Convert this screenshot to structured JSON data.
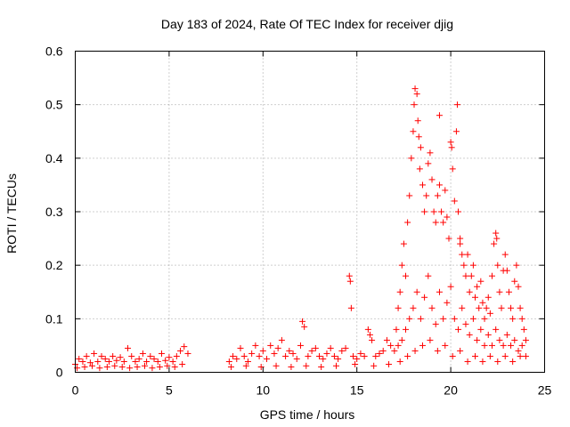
{
  "chart_data": {
    "type": "scatter",
    "title": "Day 183 of 2024, Rate Of TEC Index for receiver djig",
    "xlabel": "GPS time / hours",
    "ylabel": "ROTI / TECUs",
    "xlim": [
      0,
      25
    ],
    "ylim": [
      0,
      0.6
    ],
    "xticks": [
      0,
      5,
      10,
      15,
      20,
      25
    ],
    "yticks": [
      0,
      0.1,
      0.2,
      0.3,
      0.4,
      0.5,
      0.6
    ],
    "xtick_labels": [
      "0",
      "5",
      "10",
      "15",
      "20",
      "25"
    ],
    "ytick_labels": [
      "0",
      "0.1",
      "0.2",
      "0.3",
      "0.4",
      "0.5",
      "0.6"
    ],
    "grid": true,
    "marker": "+",
    "color": "#ff0000",
    "series": [
      {
        "points": [
          [
            0.0,
            0.015
          ],
          [
            0.2,
            0.025
          ],
          [
            0.4,
            0.02
          ],
          [
            0.6,
            0.03
          ],
          [
            0.8,
            0.018
          ],
          [
            1.0,
            0.035
          ],
          [
            1.2,
            0.02
          ],
          [
            1.4,
            0.03
          ],
          [
            1.6,
            0.025
          ],
          [
            1.8,
            0.02
          ],
          [
            2.0,
            0.03
          ],
          [
            2.2,
            0.022
          ],
          [
            2.4,
            0.028
          ],
          [
            2.6,
            0.02
          ],
          [
            2.8,
            0.045
          ],
          [
            3.0,
            0.03
          ],
          [
            3.2,
            0.02
          ],
          [
            3.4,
            0.025
          ],
          [
            3.6,
            0.035
          ],
          [
            3.8,
            0.02
          ],
          [
            4.0,
            0.03
          ],
          [
            4.2,
            0.025
          ],
          [
            4.4,
            0.02
          ],
          [
            4.6,
            0.035
          ],
          [
            4.8,
            0.022
          ],
          [
            5.0,
            0.028
          ],
          [
            5.2,
            0.02
          ],
          [
            5.4,
            0.03
          ],
          [
            5.6,
            0.04
          ],
          [
            5.8,
            0.048
          ],
          [
            6.0,
            0.035
          ],
          [
            0.1,
            0.008
          ],
          [
            0.5,
            0.01
          ],
          [
            0.9,
            0.012
          ],
          [
            1.3,
            0.008
          ],
          [
            1.7,
            0.01
          ],
          [
            2.1,
            0.012
          ],
          [
            2.5,
            0.01
          ],
          [
            2.9,
            0.008
          ],
          [
            3.3,
            0.01
          ],
          [
            3.7,
            0.012
          ],
          [
            4.1,
            0.008
          ],
          [
            4.5,
            0.01
          ],
          [
            4.9,
            0.012
          ],
          [
            5.3,
            0.01
          ],
          [
            5.7,
            0.015
          ],
          [
            8.2,
            0.02
          ],
          [
            8.4,
            0.03
          ],
          [
            8.6,
            0.025
          ],
          [
            8.8,
            0.045
          ],
          [
            9.0,
            0.03
          ],
          [
            9.2,
            0.02
          ],
          [
            9.4,
            0.035
          ],
          [
            9.6,
            0.05
          ],
          [
            9.8,
            0.03
          ],
          [
            10.0,
            0.04
          ],
          [
            10.2,
            0.025
          ],
          [
            10.4,
            0.05
          ],
          [
            10.6,
            0.035
          ],
          [
            10.8,
            0.045
          ],
          [
            11.0,
            0.06
          ],
          [
            11.2,
            0.03
          ],
          [
            11.4,
            0.04
          ],
          [
            11.6,
            0.035
          ],
          [
            11.8,
            0.025
          ],
          [
            12.0,
            0.05
          ],
          [
            12.1,
            0.095
          ],
          [
            12.2,
            0.085
          ],
          [
            12.4,
            0.03
          ],
          [
            12.6,
            0.04
          ],
          [
            12.8,
            0.045
          ],
          [
            13.0,
            0.03
          ],
          [
            13.2,
            0.025
          ],
          [
            13.4,
            0.035
          ],
          [
            13.6,
            0.045
          ],
          [
            13.8,
            0.03
          ],
          [
            14.0,
            0.025
          ],
          [
            14.2,
            0.04
          ],
          [
            14.4,
            0.045
          ],
          [
            14.6,
            0.18
          ],
          [
            14.65,
            0.17
          ],
          [
            14.7,
            0.12
          ],
          [
            14.8,
            0.03
          ],
          [
            15.0,
            0.025
          ],
          [
            15.2,
            0.035
          ],
          [
            15.4,
            0.03
          ],
          [
            15.6,
            0.08
          ],
          [
            15.7,
            0.07
          ],
          [
            15.8,
            0.06
          ],
          [
            16.0,
            0.03
          ],
          [
            16.2,
            0.035
          ],
          [
            16.4,
            0.04
          ],
          [
            16.6,
            0.06
          ],
          [
            16.8,
            0.05
          ],
          [
            17.0,
            0.04
          ],
          [
            8.3,
            0.01
          ],
          [
            9.1,
            0.012
          ],
          [
            9.9,
            0.01
          ],
          [
            10.7,
            0.012
          ],
          [
            11.5,
            0.01
          ],
          [
            12.3,
            0.012
          ],
          [
            13.1,
            0.01
          ],
          [
            13.9,
            0.012
          ],
          [
            14.9,
            0.015
          ],
          [
            15.9,
            0.012
          ],
          [
            16.7,
            0.015
          ],
          [
            17.1,
            0.08
          ],
          [
            17.2,
            0.12
          ],
          [
            17.3,
            0.15
          ],
          [
            17.4,
            0.2
          ],
          [
            17.5,
            0.24
          ],
          [
            17.6,
            0.18
          ],
          [
            17.7,
            0.28
          ],
          [
            17.8,
            0.33
          ],
          [
            17.9,
            0.4
          ],
          [
            18.0,
            0.45
          ],
          [
            18.05,
            0.5
          ],
          [
            18.1,
            0.53
          ],
          [
            18.2,
            0.52
          ],
          [
            18.25,
            0.47
          ],
          [
            18.3,
            0.44
          ],
          [
            18.35,
            0.38
          ],
          [
            18.4,
            0.42
          ],
          [
            18.5,
            0.35
          ],
          [
            18.6,
            0.3
          ],
          [
            18.7,
            0.33
          ],
          [
            18.8,
            0.39
          ],
          [
            18.9,
            0.41
          ],
          [
            19.0,
            0.36
          ],
          [
            19.1,
            0.3
          ],
          [
            19.2,
            0.28
          ],
          [
            19.3,
            0.33
          ],
          [
            19.4,
            0.35
          ],
          [
            19.5,
            0.3
          ],
          [
            19.6,
            0.28
          ],
          [
            19.7,
            0.34
          ],
          [
            19.8,
            0.29
          ],
          [
            19.9,
            0.25
          ],
          [
            20.0,
            0.43
          ],
          [
            20.05,
            0.42
          ],
          [
            20.1,
            0.38
          ],
          [
            20.2,
            0.32
          ],
          [
            20.3,
            0.45
          ],
          [
            20.35,
            0.5
          ],
          [
            20.4,
            0.3
          ],
          [
            20.5,
            0.25
          ],
          [
            20.6,
            0.22
          ],
          [
            20.7,
            0.2
          ],
          [
            19.4,
            0.48
          ],
          [
            20.5,
            0.24
          ],
          [
            20.8,
            0.18
          ],
          [
            20.9,
            0.22
          ],
          [
            21.0,
            0.15
          ],
          [
            21.1,
            0.18
          ],
          [
            21.2,
            0.2
          ],
          [
            21.3,
            0.14
          ],
          [
            21.4,
            0.16
          ],
          [
            21.5,
            0.12
          ],
          [
            21.6,
            0.17
          ],
          [
            21.7,
            0.13
          ],
          [
            21.8,
            0.1
          ],
          [
            21.9,
            0.12
          ],
          [
            22.0,
            0.14
          ],
          [
            22.1,
            0.11
          ],
          [
            22.2,
            0.18
          ],
          [
            22.3,
            0.24
          ],
          [
            22.4,
            0.26
          ],
          [
            22.45,
            0.25
          ],
          [
            22.5,
            0.2
          ],
          [
            22.6,
            0.15
          ],
          [
            22.7,
            0.12
          ],
          [
            22.8,
            0.19
          ],
          [
            22.9,
            0.22
          ],
          [
            23.0,
            0.19
          ],
          [
            23.1,
            0.15
          ],
          [
            23.2,
            0.12
          ],
          [
            23.3,
            0.1
          ],
          [
            23.4,
            0.17
          ],
          [
            23.5,
            0.2
          ],
          [
            23.6,
            0.16
          ],
          [
            23.7,
            0.12
          ],
          [
            23.8,
            0.1
          ],
          [
            23.9,
            0.08
          ],
          [
            24.0,
            0.06
          ],
          [
            17.2,
            0.05
          ],
          [
            17.4,
            0.06
          ],
          [
            17.6,
            0.08
          ],
          [
            17.8,
            0.1
          ],
          [
            18.0,
            0.12
          ],
          [
            18.2,
            0.15
          ],
          [
            18.4,
            0.1
          ],
          [
            18.6,
            0.14
          ],
          [
            18.8,
            0.18
          ],
          [
            19.0,
            0.12
          ],
          [
            19.2,
            0.09
          ],
          [
            19.4,
            0.15
          ],
          [
            19.6,
            0.1
          ],
          [
            19.8,
            0.13
          ],
          [
            20.0,
            0.16
          ],
          [
            20.2,
            0.1
          ],
          [
            20.4,
            0.08
          ],
          [
            20.6,
            0.12
          ],
          [
            20.8,
            0.09
          ],
          [
            21.0,
            0.07
          ],
          [
            21.2,
            0.1
          ],
          [
            21.4,
            0.06
          ],
          [
            21.6,
            0.08
          ],
          [
            21.8,
            0.05
          ],
          [
            22.0,
            0.07
          ],
          [
            22.2,
            0.05
          ],
          [
            22.4,
            0.08
          ],
          [
            22.6,
            0.06
          ],
          [
            22.8,
            0.05
          ],
          [
            23.0,
            0.07
          ],
          [
            23.2,
            0.05
          ],
          [
            23.4,
            0.06
          ],
          [
            23.6,
            0.04
          ],
          [
            23.8,
            0.05
          ],
          [
            24.0,
            0.03
          ],
          [
            17.3,
            0.02
          ],
          [
            17.7,
            0.03
          ],
          [
            18.1,
            0.04
          ],
          [
            18.5,
            0.05
          ],
          [
            18.9,
            0.06
          ],
          [
            19.3,
            0.04
          ],
          [
            19.7,
            0.05
          ],
          [
            20.1,
            0.03
          ],
          [
            20.5,
            0.04
          ],
          [
            20.9,
            0.02
          ],
          [
            21.3,
            0.03
          ],
          [
            21.7,
            0.02
          ],
          [
            22.1,
            0.03
          ],
          [
            22.5,
            0.02
          ],
          [
            22.9,
            0.03
          ],
          [
            23.3,
            0.02
          ],
          [
            23.7,
            0.03
          ]
        ]
      }
    ]
  }
}
